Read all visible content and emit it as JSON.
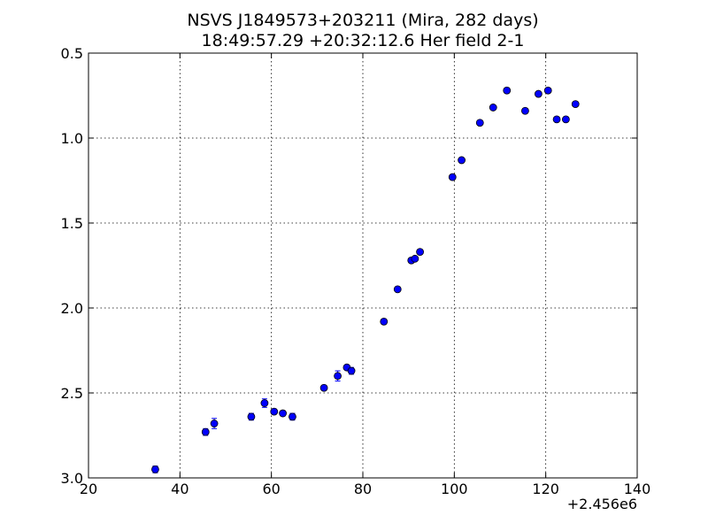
{
  "chart_data": {
    "type": "scatter",
    "title": "NSVS J1849573+203211 (Mira, 282 days)",
    "subtitle": "18:49:57.29 +20:32:12.6 Her field 2-1",
    "xlabel": "",
    "ylabel": "",
    "x_offset_label": "+2.456e6",
    "xlim": [
      20,
      140
    ],
    "ylim": [
      3.0,
      0.5
    ],
    "y_inverted": true,
    "x_ticks": [
      20,
      40,
      60,
      80,
      100,
      120,
      140
    ],
    "x_tick_labels": [
      "20",
      "40",
      "60",
      "80",
      "100",
      "120",
      "140"
    ],
    "y_ticks": [
      0.5,
      1.0,
      1.5,
      2.0,
      2.5,
      3.0
    ],
    "y_tick_labels": [
      "0.5",
      "1.0",
      "1.5",
      "2.0",
      "2.5",
      "3.0"
    ],
    "grid": true,
    "marker_color": "#0000ff",
    "points": [
      {
        "x": 34.6,
        "y": 2.95,
        "err": 0.02
      },
      {
        "x": 45.6,
        "y": 2.73,
        "err": 0.02
      },
      {
        "x": 47.5,
        "y": 2.68,
        "err": 0.03
      },
      {
        "x": 55.6,
        "y": 2.64,
        "err": 0.02
      },
      {
        "x": 58.5,
        "y": 2.56,
        "err": 0.025
      },
      {
        "x": 60.6,
        "y": 2.61,
        "err": 0.015
      },
      {
        "x": 62.5,
        "y": 2.62,
        "err": 0.015
      },
      {
        "x": 64.6,
        "y": 2.64,
        "err": 0.02
      },
      {
        "x": 71.5,
        "y": 2.47,
        "err": 0.015
      },
      {
        "x": 74.5,
        "y": 2.4,
        "err": 0.03
      },
      {
        "x": 76.5,
        "y": 2.35,
        "err": 0.015
      },
      {
        "x": 77.5,
        "y": 2.37,
        "err": 0.02
      },
      {
        "x": 84.6,
        "y": 2.08,
        "err": 0.015
      },
      {
        "x": 87.6,
        "y": 1.89,
        "err": 0.01
      },
      {
        "x": 90.6,
        "y": 1.72,
        "err": 0.01
      },
      {
        "x": 91.4,
        "y": 1.71,
        "err": 0.01
      },
      {
        "x": 92.5,
        "y": 1.67,
        "err": 0.01
      },
      {
        "x": 99.6,
        "y": 1.23,
        "err": 0.01
      },
      {
        "x": 101.6,
        "y": 1.13,
        "err": 0.01
      },
      {
        "x": 105.6,
        "y": 0.91,
        "err": 0.01
      },
      {
        "x": 108.5,
        "y": 0.82,
        "err": 0.01
      },
      {
        "x": 111.5,
        "y": 0.72,
        "err": 0.015
      },
      {
        "x": 115.5,
        "y": 0.84,
        "err": 0.01
      },
      {
        "x": 118.4,
        "y": 0.74,
        "err": 0.01
      },
      {
        "x": 120.5,
        "y": 0.72,
        "err": 0.01
      },
      {
        "x": 122.4,
        "y": 0.89,
        "err": 0.01
      },
      {
        "x": 124.4,
        "y": 0.89,
        "err": 0.01
      },
      {
        "x": 126.5,
        "y": 0.8,
        "err": 0.01
      }
    ]
  }
}
